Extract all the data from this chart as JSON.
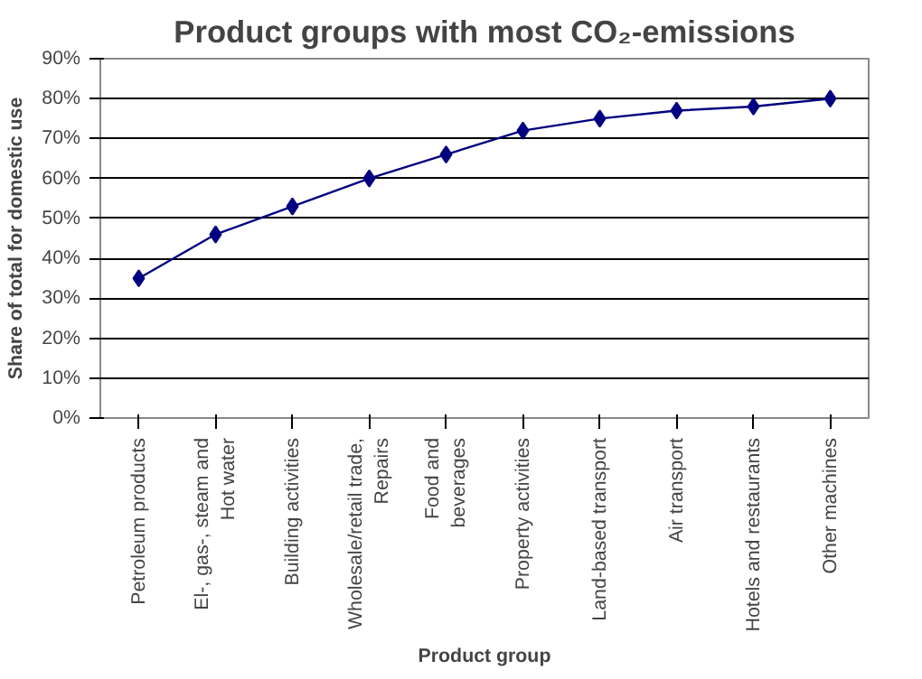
{
  "chart_data": {
    "type": "line",
    "title": "Product groups with most CO₂-emissions",
    "xlabel": "Product group",
    "ylabel": "Share of total for domestic use",
    "categories": [
      "Petroleum products",
      "El-, gas-, steam and\nHot water",
      "Building activities",
      "Wholesale/retail trade,\nRepairs",
      "Food and\nbeverages",
      "Property activities",
      "Land-based transport",
      "Air transport",
      "Hotels and restaurants",
      "Other machines"
    ],
    "series": [
      {
        "color": "#000080",
        "values": [
          35,
          46,
          53,
          60,
          66,
          72,
          75,
          77,
          78,
          80
        ]
      }
    ],
    "ylim": [
      0,
      90
    ],
    "yticks": [
      {
        "value": 0,
        "label": "0%"
      },
      {
        "value": 10,
        "label": "10%"
      },
      {
        "value": 20,
        "label": "20%"
      },
      {
        "value": 30,
        "label": "30%"
      },
      {
        "value": 40,
        "label": "40%"
      },
      {
        "value": 50,
        "label": "50%"
      },
      {
        "value": 60,
        "label": "60%"
      },
      {
        "value": 70,
        "label": "70%"
      },
      {
        "value": 80,
        "label": "80%"
      },
      {
        "value": 90,
        "label": "90%"
      }
    ],
    "grid": "y",
    "marker": "diamond",
    "line_style": "solid"
  }
}
